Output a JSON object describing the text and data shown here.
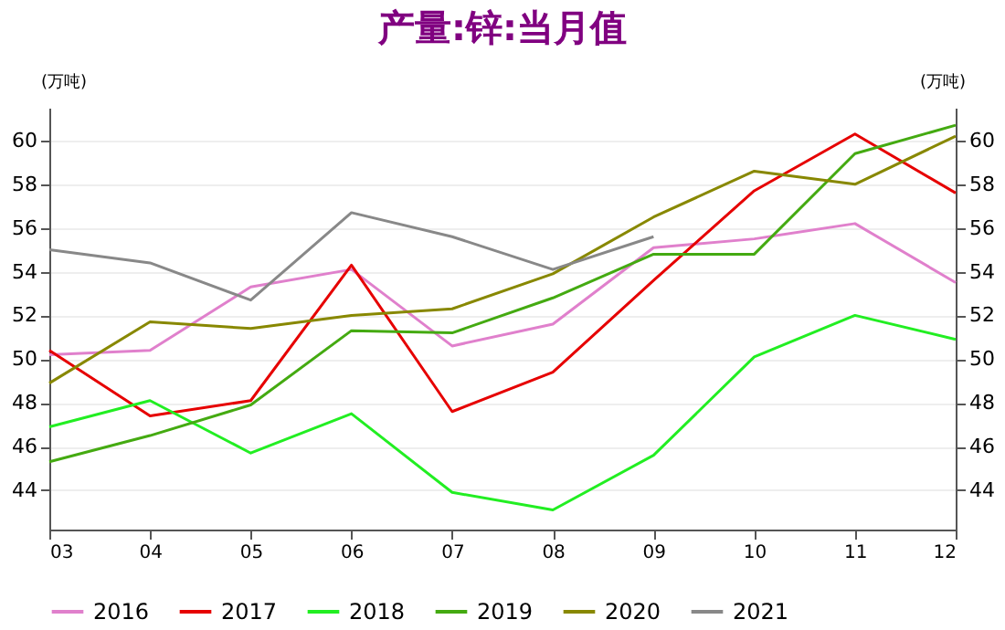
{
  "chart_data": {
    "type": "line",
    "title": "产量:锌:当月值",
    "ylabel": "(万吨)",
    "y2label": "(万吨)",
    "categories": [
      "03",
      "04",
      "05",
      "06",
      "07",
      "08",
      "09",
      "10",
      "11",
      "12"
    ],
    "ylim": [
      42.2,
      61.5
    ],
    "yticks": [
      44,
      46,
      48,
      50,
      52,
      54,
      56,
      58,
      60
    ],
    "y2lim": [
      42.2,
      61.5
    ],
    "y2ticks": [
      44,
      46,
      48,
      50,
      52,
      54,
      56,
      58,
      60
    ],
    "grid": "y",
    "legend": "bottom",
    "series": [
      {
        "name": "2016",
        "color": "#e080cc",
        "values": [
          50.2,
          50.4,
          53.3,
          54.1,
          50.6,
          51.6,
          55.1,
          55.5,
          56.2,
          53.5
        ]
      },
      {
        "name": "2017",
        "color": "#e60000",
        "values": [
          50.4,
          47.4,
          48.1,
          54.3,
          47.6,
          49.4,
          53.6,
          57.7,
          60.3,
          57.6
        ]
      },
      {
        "name": "2018",
        "color": "#22ee22",
        "values": [
          46.9,
          48.1,
          45.7,
          47.5,
          43.9,
          43.1,
          45.6,
          50.1,
          52.0,
          50.9
        ]
      },
      {
        "name": "2019",
        "color": "#44aa11",
        "values": [
          45.3,
          46.5,
          47.9,
          51.3,
          51.2,
          52.8,
          54.8,
          54.8,
          59.4,
          60.7
        ]
      },
      {
        "name": "2020",
        "color": "#888800",
        "values": [
          48.9,
          51.7,
          51.4,
          52.0,
          52.3,
          53.9,
          56.5,
          58.6,
          58.0,
          60.2
        ]
      },
      {
        "name": "2021",
        "color": "#888888",
        "values": [
          55.0,
          54.4,
          52.7,
          56.7,
          55.6,
          54.1,
          55.6,
          null,
          null,
          null
        ]
      }
    ]
  }
}
